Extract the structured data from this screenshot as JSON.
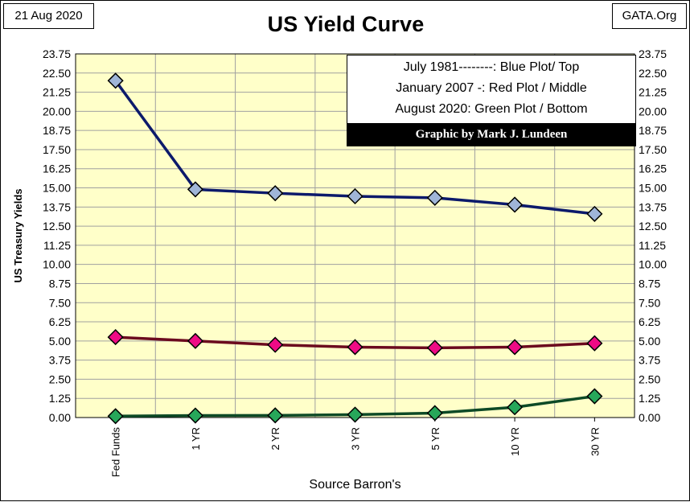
{
  "header": {
    "date": "21 Aug 2020",
    "source": "GATA.Org"
  },
  "legend": {
    "lines": [
      "July 1981--------: Blue Plot/ Top",
      "January 2007 -: Red Plot / Middle",
      "August 2020: Green Plot / Bottom"
    ],
    "credit": "Graphic by Mark J. Lundeen"
  },
  "colors": {
    "plot_background": "#ffffc9",
    "grid": "#a0a0a0",
    "series_blue_line": "#0c1a6b",
    "series_blue_marker": "#9fb5d8",
    "series_red_line": "#6b0a1e",
    "series_red_marker": "#ee0b85",
    "series_green_line": "#0d4a26",
    "series_green_marker": "#27a75a"
  },
  "chart_data": {
    "type": "line",
    "title": "US Yield Curve",
    "xlabel": "Source Barron's",
    "ylabel": "US Treasury Yields",
    "categories": [
      "Fed Funds",
      "1 YR",
      "2 YR",
      "3 YR",
      "5 YR",
      "10 YR",
      "30 YR"
    ],
    "ylim": [
      0,
      23.75
    ],
    "yticks": [
      "0.00",
      "1.25",
      "2.50",
      "3.75",
      "5.00",
      "6.25",
      "7.50",
      "8.75",
      "10.00",
      "11.25",
      "12.50",
      "13.75",
      "15.00",
      "16.25",
      "17.50",
      "18.75",
      "20.00",
      "21.25",
      "22.50",
      "23.75"
    ],
    "grid": true,
    "secondary_y_axis": true,
    "series": [
      {
        "color_key": "blue",
        "values": [
          22.0,
          14.9,
          14.65,
          14.45,
          14.35,
          13.9,
          13.3
        ]
      },
      {
        "color_key": "red",
        "values": [
          5.25,
          5.0,
          4.75,
          4.6,
          4.55,
          4.6,
          4.85
        ]
      },
      {
        "color_key": "green",
        "values": [
          0.09,
          0.13,
          0.14,
          0.19,
          0.29,
          0.67,
          1.39
        ]
      }
    ]
  }
}
